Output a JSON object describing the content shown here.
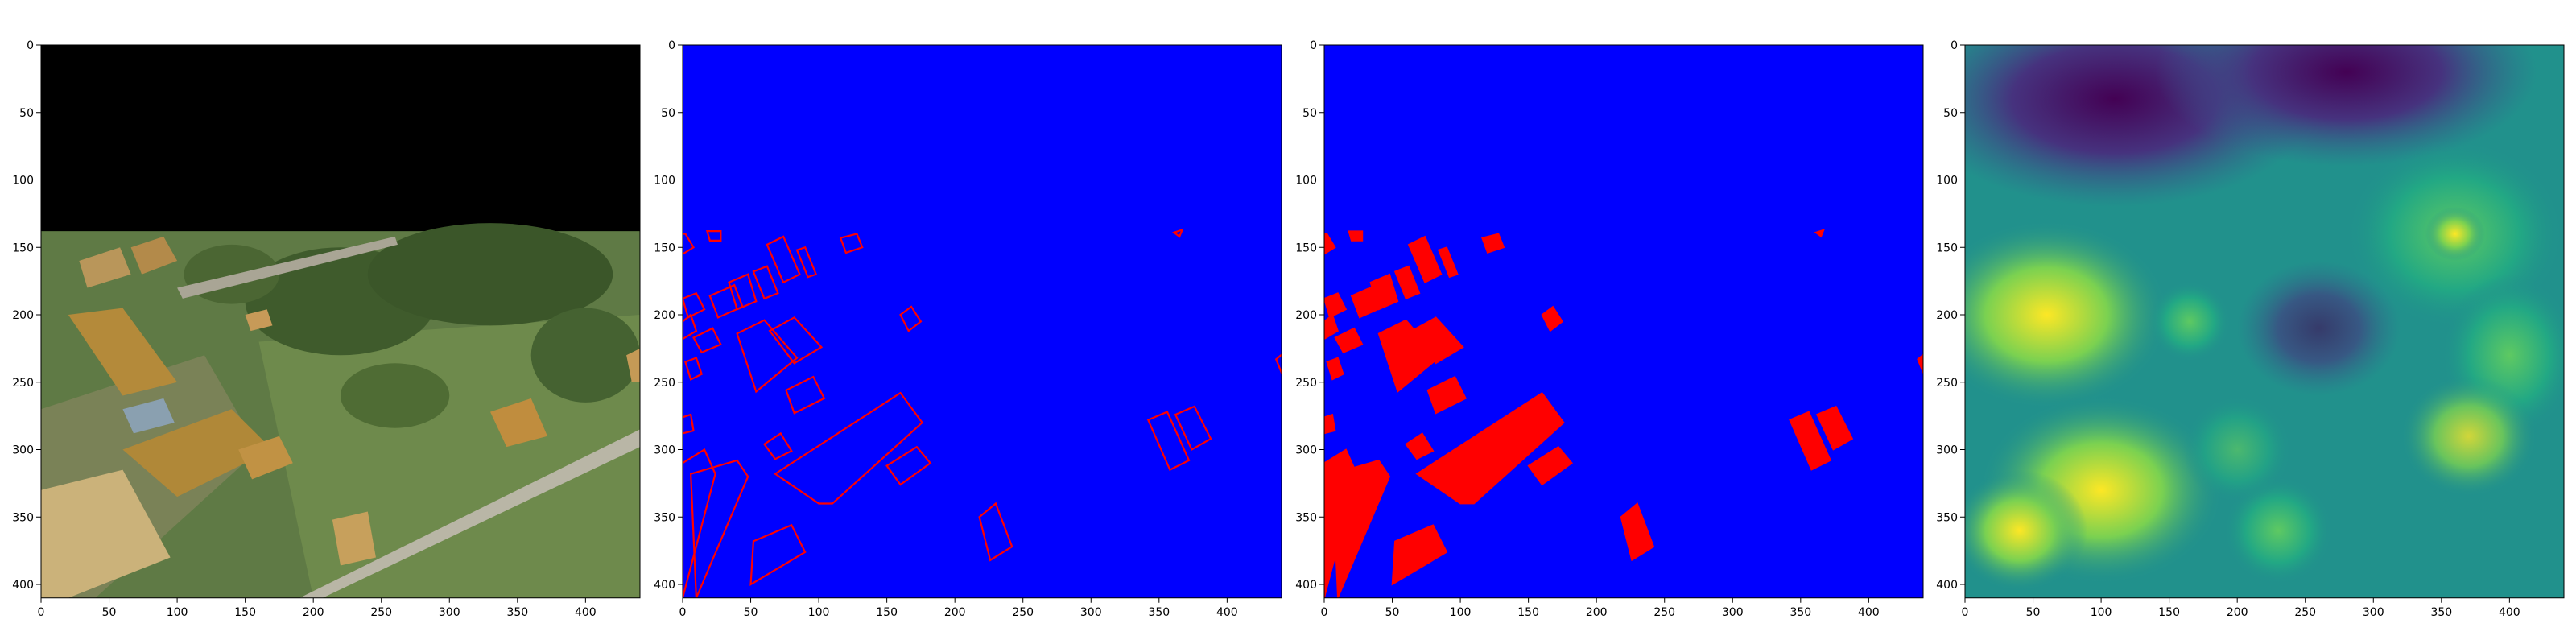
{
  "figure": {
    "panels": [
      {
        "id": "rgb",
        "content": "aerial satellite image: top band black (no data), below farmland with buildings, trees and roads",
        "x_ticks": [
          "0",
          "50",
          "100",
          "150",
          "200",
          "250",
          "300",
          "350",
          "400"
        ],
        "y_ticks": [
          "0",
          "50",
          "100",
          "150",
          "200",
          "250",
          "300",
          "350",
          "400"
        ]
      },
      {
        "id": "boundary-mask",
        "content": "red building outlines on blue background",
        "colors": {
          "background": "#0000ff",
          "foreground": "#ff0000"
        },
        "x_ticks": [
          "0",
          "50",
          "100",
          "150",
          "200",
          "250",
          "300",
          "350",
          "400"
        ],
        "y_ticks": [
          "0",
          "50",
          "100",
          "150",
          "200",
          "250",
          "300",
          "350",
          "400"
        ]
      },
      {
        "id": "building-mask",
        "content": "filled red building footprints on blue background",
        "colors": {
          "background": "#0000ff",
          "foreground": "#ff0000"
        },
        "x_ticks": [
          "0",
          "50",
          "100",
          "150",
          "200",
          "250",
          "300",
          "350",
          "400"
        ],
        "y_ticks": [
          "0",
          "50",
          "100",
          "150",
          "200",
          "250",
          "300",
          "350",
          "400"
        ]
      },
      {
        "id": "distance-map",
        "content": "viridis-coloured distance transform to building edges",
        "colors": {
          "low": "#440154",
          "mid": "#21918c",
          "high": "#fde725"
        },
        "x_ticks": [
          "0",
          "50",
          "100",
          "150",
          "200",
          "250",
          "300",
          "350",
          "400"
        ],
        "y_ticks": [
          "0",
          "50",
          "100",
          "150",
          "200",
          "250",
          "300",
          "350",
          "400"
        ]
      }
    ]
  }
}
